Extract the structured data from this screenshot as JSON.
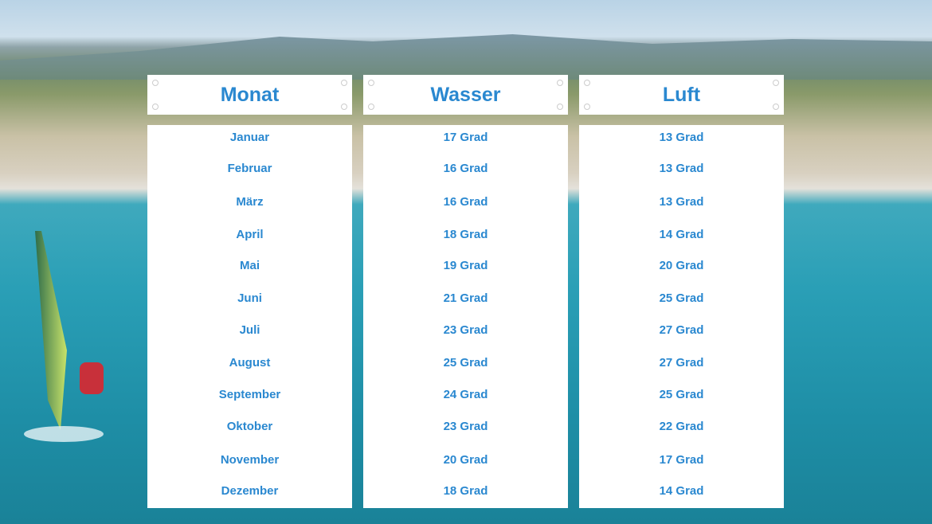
{
  "headers": {
    "month": "Monat",
    "water": "Wasser",
    "air": "Luft"
  },
  "colors": {
    "text": "#2a88d0",
    "card": "#ffffff"
  },
  "rows": [
    {
      "month": "Januar",
      "water": "17 Grad",
      "air": "13 Grad"
    },
    {
      "month": "Februar",
      "water": "16 Grad",
      "air": "13 Grad"
    },
    {
      "month": "März",
      "water": "16 Grad",
      "air": "13 Grad"
    },
    {
      "month": "April",
      "water": "18 Grad",
      "air": "14 Grad"
    },
    {
      "month": "Mai",
      "water": "19 Grad",
      "air": "20 Grad"
    },
    {
      "month": "Juni",
      "water": "21 Grad",
      "air": "25 Grad"
    },
    {
      "month": "Juli",
      "water": "23 Grad",
      "air": "27 Grad"
    },
    {
      "month": "August",
      "water": "25 Grad",
      "air": "27 Grad"
    },
    {
      "month": "September",
      "water": "24 Grad",
      "air": "25 Grad"
    },
    {
      "month": "Oktober",
      "water": "23 Grad",
      "air": "22 Grad"
    },
    {
      "month": "November",
      "water": "20 Grad",
      "air": "17 Grad"
    },
    {
      "month": "Dezember",
      "water": "18 Grad",
      "air": "14 Grad"
    }
  ]
}
